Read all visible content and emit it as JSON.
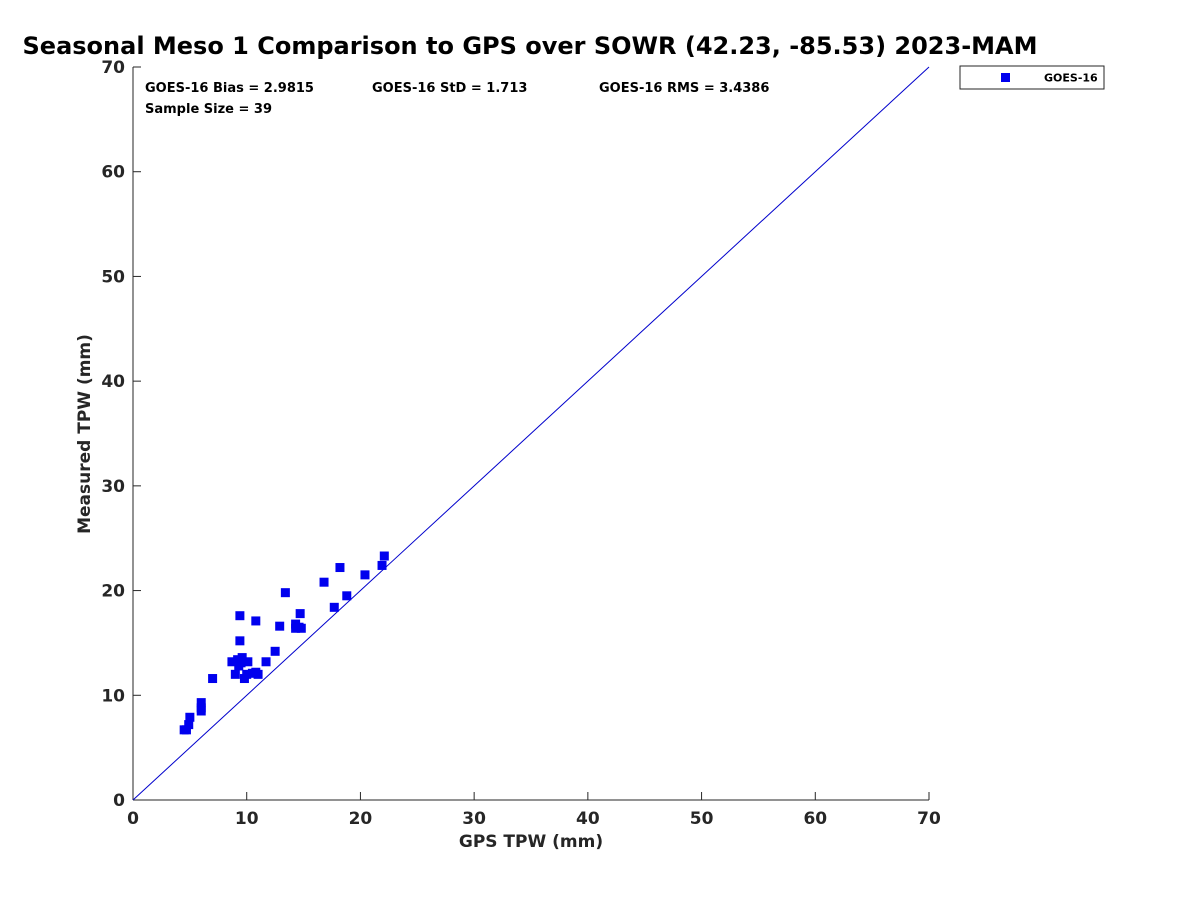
{
  "chart_data": {
    "type": "scatter",
    "title": "Seasonal Meso 1 Comparison to GPS over SOWR (42.23, -85.53) 2023-MAM",
    "xlabel": "GPS TPW (mm)",
    "ylabel": "Measured TPW (mm)",
    "xlim": [
      0,
      70
    ],
    "ylim": [
      0,
      70
    ],
    "xticks": [
      "0",
      "10",
      "20",
      "30",
      "40",
      "50",
      "60",
      "70"
    ],
    "yticks": [
      "0",
      "10",
      "20",
      "30",
      "40",
      "50",
      "60",
      "70"
    ],
    "grid": false,
    "legend_position": "top-right outside",
    "reference_line": {
      "x": [
        0,
        70
      ],
      "y": [
        0,
        70
      ],
      "color": "#0000cc"
    },
    "series": [
      {
        "name": "GOES-16",
        "color": "#0000ee",
        "marker": "square",
        "points": [
          [
            4.5,
            6.7
          ],
          [
            4.7,
            6.7
          ],
          [
            4.9,
            7.2
          ],
          [
            5.0,
            7.9
          ],
          [
            6.0,
            8.5
          ],
          [
            6.0,
            8.8
          ],
          [
            6.0,
            9.3
          ],
          [
            7.0,
            11.6
          ],
          [
            8.7,
            13.2
          ],
          [
            9.0,
            12.0
          ],
          [
            9.2,
            13.4
          ],
          [
            9.3,
            12.8
          ],
          [
            9.4,
            15.2
          ],
          [
            9.4,
            17.6
          ],
          [
            9.5,
            13.1
          ],
          [
            9.6,
            13.6
          ],
          [
            9.8,
            11.6
          ],
          [
            10.0,
            12.0
          ],
          [
            10.1,
            13.2
          ],
          [
            10.5,
            12.1
          ],
          [
            10.8,
            12.2
          ],
          [
            10.8,
            17.1
          ],
          [
            11.0,
            12.0
          ],
          [
            11.7,
            13.2
          ],
          [
            12.5,
            14.2
          ],
          [
            12.9,
            16.6
          ],
          [
            13.4,
            19.8
          ],
          [
            14.3,
            16.4
          ],
          [
            14.3,
            16.8
          ],
          [
            14.6,
            16.5
          ],
          [
            14.8,
            16.4
          ],
          [
            14.7,
            17.8
          ],
          [
            16.8,
            20.8
          ],
          [
            17.7,
            18.4
          ],
          [
            18.2,
            22.2
          ],
          [
            18.8,
            19.5
          ],
          [
            20.4,
            21.5
          ],
          [
            21.9,
            22.4
          ],
          [
            22.1,
            23.3
          ]
        ]
      }
    ],
    "annotations": [
      "GOES-16 Bias = 2.9815",
      "GOES-16 StD = 1.713",
      "GOES-16 RMS = 3.4386",
      "Sample Size = 39"
    ]
  }
}
